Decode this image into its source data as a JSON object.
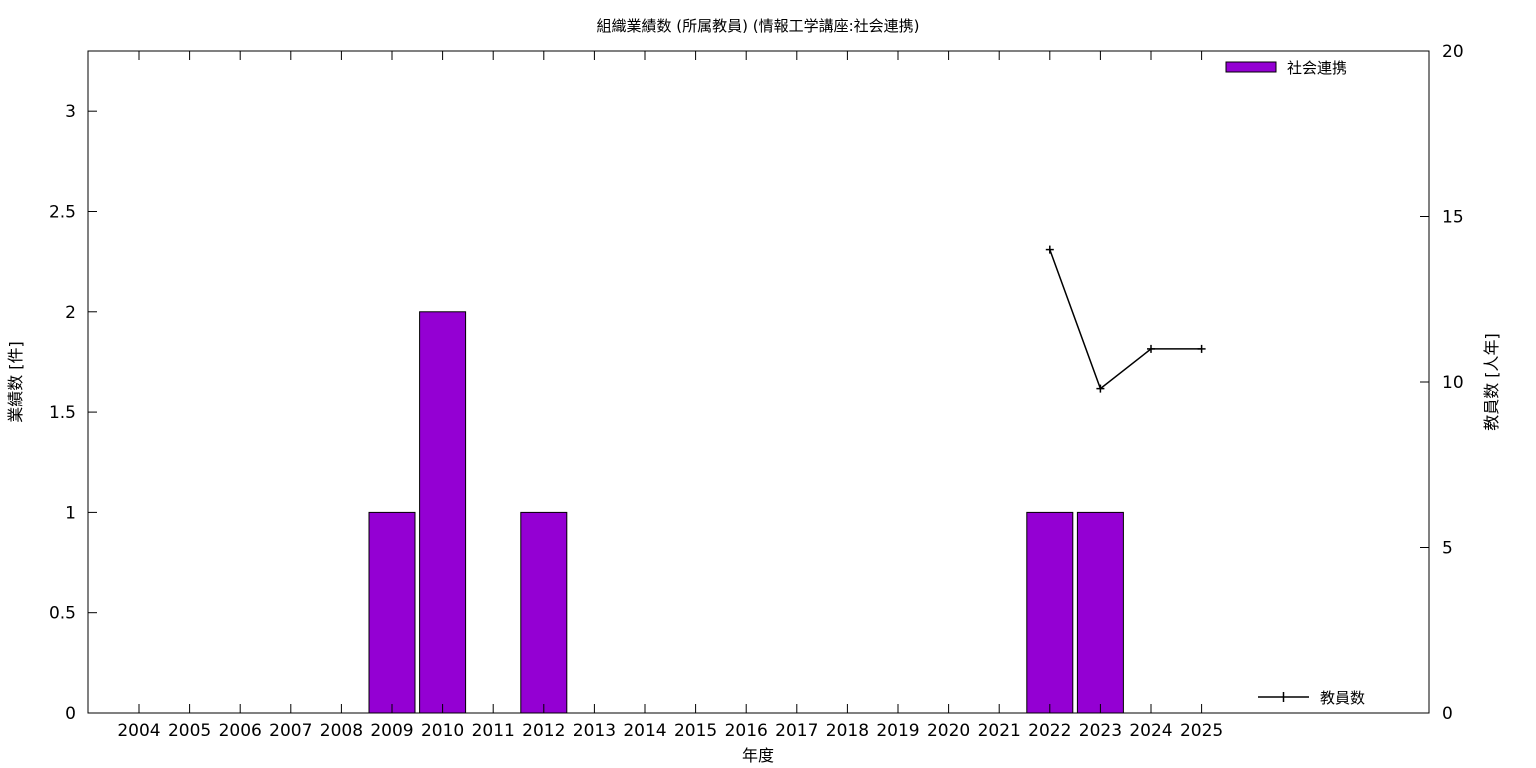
{
  "chart_data": {
    "type": "bar",
    "title": "組織業績数 (所属教員) (情報工学講座:社会連携)",
    "xlabel": "年度",
    "ylabel": "業績数 [件]",
    "y2label": "教員数 [人年]",
    "categories": [
      "2004",
      "2005",
      "2006",
      "2007",
      "2008",
      "2009",
      "2010",
      "2011",
      "2012",
      "2013",
      "2014",
      "2015",
      "2016",
      "2017",
      "2018",
      "2019",
      "2020",
      "2021",
      "2022",
      "2023",
      "2024",
      "2025"
    ],
    "ylim": [
      0,
      3.3
    ],
    "y_ticks": [
      "0",
      "0.5",
      "1",
      "1.5",
      "2",
      "2.5",
      "3"
    ],
    "y2lim": [
      0,
      20
    ],
    "y2_ticks": [
      "0",
      "5",
      "10",
      "15",
      "20"
    ],
    "series": [
      {
        "name": "社会連携",
        "type": "bar",
        "axis": "left",
        "color": "#9400d3",
        "values": [
          0,
          0,
          0,
          0,
          0,
          1,
          2,
          0,
          1,
          0,
          0,
          0,
          0,
          0,
          0,
          0,
          0,
          0,
          1,
          1,
          0,
          0
        ]
      },
      {
        "name": "教員数",
        "type": "line",
        "axis": "right",
        "color": "#000000",
        "values": [
          null,
          null,
          null,
          null,
          null,
          null,
          null,
          null,
          null,
          null,
          null,
          null,
          null,
          null,
          null,
          null,
          null,
          null,
          14,
          9.8,
          11,
          11
        ]
      }
    ],
    "grid": false,
    "legend": [
      "top-right",
      "bottom-right"
    ]
  }
}
